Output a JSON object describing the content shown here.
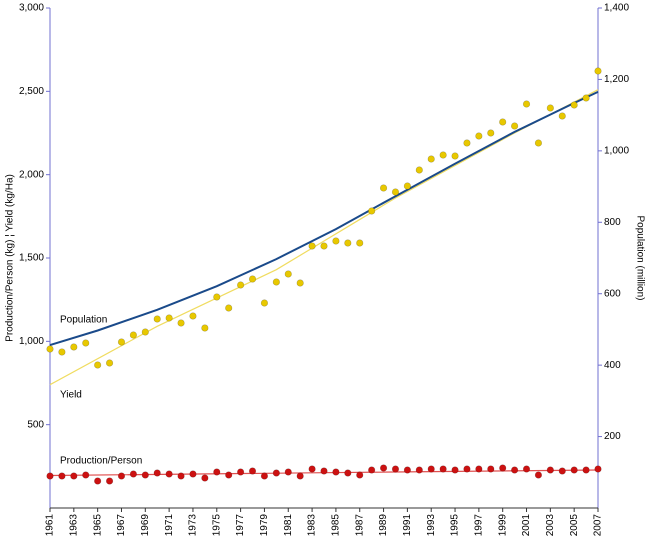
{
  "chart_data": {
    "type": "scatter",
    "y_label": "Production/Person (kg) ¦ Yield (kg/Ha)",
    "y2_label": "Population (million)",
    "xlim": [
      1961,
      2007
    ],
    "xticks": [
      1961,
      1963,
      1965,
      1967,
      1969,
      1971,
      1973,
      1975,
      1977,
      1979,
      1981,
      1983,
      1985,
      1987,
      1989,
      1991,
      1993,
      1995,
      1997,
      1999,
      2001,
      2003,
      2005,
      2007
    ],
    "ylim": [
      0,
      3000
    ],
    "yticks": [
      500,
      {
        "value": 1000,
        "label": "1,000"
      },
      {
        "value": 1500,
        "label": "1,500"
      },
      {
        "value": 2000,
        "label": "2,000"
      },
      {
        "value": 2500,
        "label": "2,500"
      },
      {
        "value": 3000,
        "label": "3,000"
      }
    ],
    "y2lim": [
      0,
      1400
    ],
    "y2ticks": [
      200,
      400,
      600,
      800,
      {
        "value": 1000,
        "label": "1,000"
      },
      {
        "value": 1200,
        "label": "1,200"
      },
      {
        "value": 1400,
        "label": "1,400"
      }
    ],
    "x": [
      1961,
      1962,
      1963,
      1964,
      1965,
      1966,
      1967,
      1968,
      1969,
      1970,
      1971,
      1972,
      1973,
      1974,
      1975,
      1976,
      1977,
      1978,
      1979,
      1980,
      1981,
      1982,
      1983,
      1984,
      1985,
      1986,
      1987,
      1988,
      1989,
      1990,
      1991,
      1992,
      1993,
      1994,
      1995,
      1996,
      1997,
      1998,
      1999,
      2000,
      2001,
      2002,
      2003,
      2004,
      2005,
      2006,
      2007
    ],
    "series": [
      {
        "name": "Population",
        "color": "#1a4a8a",
        "axis": "y2",
        "kind": "line",
        "x": [
          1961,
          1965,
          1970,
          1975,
          1980,
          1985,
          1990,
          1995,
          2000,
          2005,
          2007
        ],
        "values": [
          456,
          497,
          555,
          621,
          697,
          781,
          873,
          964,
          1053,
          1134,
          1165
        ]
      },
      {
        "name": "Yield",
        "color": "#e8c800",
        "kind": "points",
        "values": [
          954,
          936,
          966,
          990,
          858,
          870,
          996,
          1038,
          1056,
          1134,
          1140,
          1110,
          1152,
          1080,
          1266,
          1200,
          1338,
          1374,
          1230,
          1356,
          1404,
          1350,
          1572,
          1572,
          1602,
          1590,
          1590,
          1782,
          1920,
          1896,
          1932,
          2028,
          2094,
          2118,
          2112,
          2190,
          2232,
          2250,
          2316,
          2292,
          2424,
          2190,
          2400,
          2352,
          2418,
          2460,
          2622
        ]
      },
      {
        "name": "Production/Person",
        "color": "#cc1111",
        "kind": "points",
        "values": [
          192,
          192,
          192,
          198,
          162,
          162,
          192,
          204,
          198,
          210,
          204,
          192,
          204,
          180,
          216,
          198,
          216,
          222,
          192,
          210,
          216,
          192,
          234,
          222,
          216,
          210,
          198,
          228,
          240,
          234,
          228,
          228,
          234,
          234,
          228,
          234,
          234,
          234,
          240,
          228,
          234,
          198,
          228,
          222,
          228,
          228,
          234
        ]
      }
    ],
    "trends": [
      {
        "color": "#f0dc60",
        "x": [
          1961,
          1970,
          1980,
          1990,
          2000,
          2007
        ],
        "values": [
          740,
          1090,
          1430,
          1860,
          2250,
          2510
        ]
      },
      {
        "color": "#e05050",
        "x": [
          1961,
          1984,
          2007
        ],
        "values": [
          195,
          212,
          228
        ]
      }
    ]
  }
}
